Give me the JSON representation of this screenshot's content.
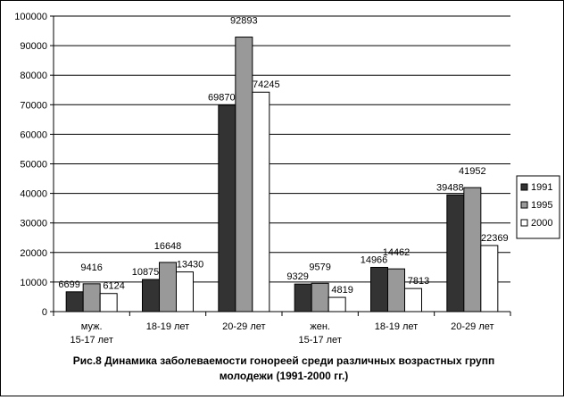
{
  "chart_data": {
    "type": "bar",
    "title": "",
    "xlabel": "",
    "ylabel": "",
    "ylim": [
      0,
      100000
    ],
    "ytick_values": [
      0,
      10000,
      20000,
      30000,
      40000,
      50000,
      60000,
      70000,
      80000,
      90000,
      100000
    ],
    "grid": true,
    "legend_position": "right",
    "categories": [
      [
        "муж.",
        "15-17 лет"
      ],
      [
        "18-19 лет"
      ],
      [
        "20-29 лет"
      ],
      [
        "жен.",
        "15-17 лет"
      ],
      [
        "18-19 лет"
      ],
      [
        "20-29 лет"
      ]
    ],
    "series": [
      {
        "name": "1991",
        "color": "#333333",
        "values": [
          6699,
          10875,
          69870,
          9329,
          14966,
          39488
        ]
      },
      {
        "name": "1995",
        "color": "#999999",
        "values": [
          9416,
          16648,
          92893,
          9579,
          14462,
          41952
        ]
      },
      {
        "name": "2000",
        "color": "#ffffff",
        "values": [
          6124,
          13430,
          74245,
          4819,
          7813,
          22369
        ]
      }
    ]
  },
  "caption": {
    "line1": "Рис.8 Динамика заболеваемости гонореей среди различных возрастных групп",
    "line2": "молодежи (1991-2000 гг.)"
  }
}
